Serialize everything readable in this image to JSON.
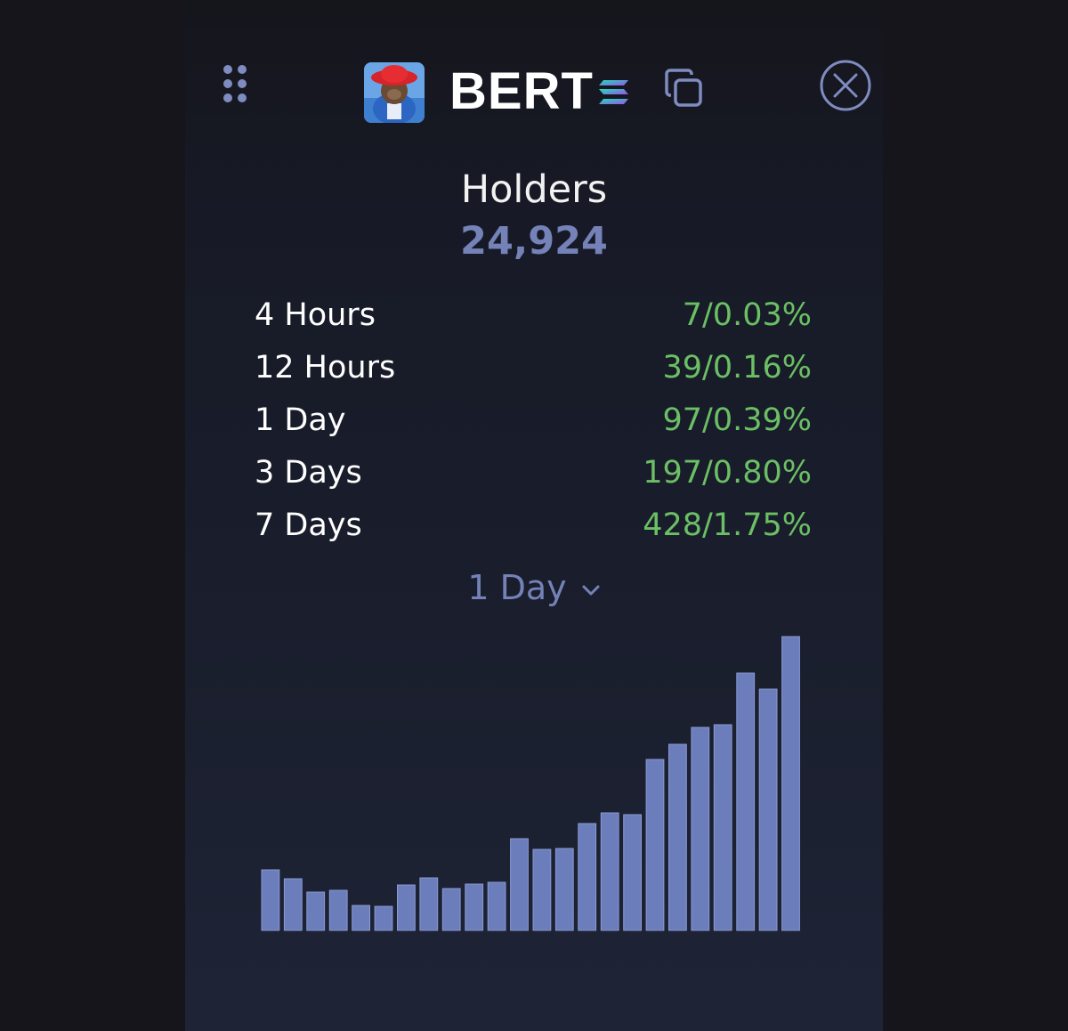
{
  "header": {
    "token_symbol": "BERT",
    "icons": {
      "drag": "drag-handle-icon",
      "chain": "solana-icon",
      "copy": "copy-icon",
      "close": "close-icon"
    }
  },
  "holders": {
    "title": "Holders",
    "count": "24,924"
  },
  "stats": [
    {
      "label": "4 Hours",
      "value": "7/0.03%"
    },
    {
      "label": "12 Hours",
      "value": "39/0.16%"
    },
    {
      "label": "1 Day",
      "value": "97/0.39%"
    },
    {
      "label": "3 Days",
      "value": "197/0.80%"
    },
    {
      "label": "7 Days",
      "value": "428/1.75%"
    }
  ],
  "period_select": {
    "selected": "1 Day"
  },
  "colors": {
    "bar": "#6b7dbb",
    "bar_stroke": "#8a9ad2",
    "positive": "#6bbf64",
    "accent": "#7482b8"
  },
  "chart_data": {
    "type": "bar",
    "title": "",
    "xlabel": "",
    "ylabel": "",
    "ylim": [
      0,
      330
    ],
    "values": [
      68,
      58,
      43,
      45,
      28,
      27,
      51,
      59,
      47,
      52,
      54,
      103,
      91,
      92,
      120,
      132,
      130,
      192,
      209,
      228,
      231,
      289,
      271,
      330
    ]
  }
}
